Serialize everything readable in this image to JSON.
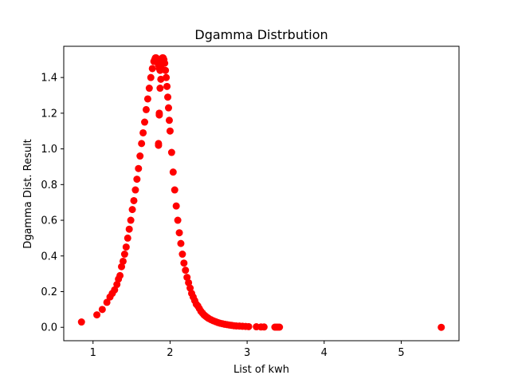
{
  "chart_data": {
    "type": "scatter",
    "title": "Dgamma Distrbution",
    "xlabel": "List of kwh",
    "ylabel": "Dgamma Dist. Result",
    "xlim": [
      0.62,
      5.75
    ],
    "ylim": [
      -0.075,
      1.575
    ],
    "xticks": [
      1,
      2,
      3,
      4,
      5
    ],
    "yticks": [
      0.0,
      0.2,
      0.4,
      0.6,
      0.8,
      1.0,
      1.2,
      1.4
    ],
    "ytick_labels": [
      "0.0",
      "0.2",
      "0.4",
      "0.6",
      "0.8",
      "1.0",
      "1.2",
      "1.4"
    ],
    "grid": false,
    "marker_color": "#ff0000",
    "series": [
      {
        "x": [
          0.85,
          1.05,
          1.12,
          1.18,
          1.22,
          1.25,
          1.28,
          1.31,
          1.33,
          1.35,
          1.37,
          1.39,
          1.41,
          1.43,
          1.45,
          1.47,
          1.49,
          1.51,
          1.53,
          1.55,
          1.57,
          1.59,
          1.61,
          1.63,
          1.65,
          1.67,
          1.69,
          1.71,
          1.73,
          1.75,
          1.77,
          1.79,
          1.8,
          1.81,
          1.82,
          1.83,
          1.84,
          1.85,
          1.86,
          1.87,
          1.88,
          1.89,
          1.9,
          1.91,
          1.92,
          1.93,
          1.94,
          1.95,
          1.96,
          1.97,
          1.98,
          1.99,
          2.0,
          2.02,
          2.04,
          2.06,
          2.08,
          2.1,
          2.12,
          2.14,
          2.16,
          2.18,
          2.2,
          2.22,
          2.24,
          2.26,
          2.28,
          2.3,
          2.32,
          2.34,
          2.36,
          2.38,
          2.4,
          2.42,
          2.44,
          2.46,
          2.48,
          2.5,
          2.53,
          2.56,
          2.59,
          2.62,
          2.65,
          2.68,
          2.71,
          2.74,
          2.77,
          2.8,
          2.83,
          2.86,
          2.9,
          2.94,
          2.98,
          3.02,
          3.12,
          3.18,
          3.22,
          3.36,
          3.38,
          3.4,
          3.42,
          1.85,
          1.85,
          1.86,
          1.86,
          1.87,
          1.88,
          5.52
        ],
        "y": [
          0.03,
          0.07,
          0.1,
          0.14,
          0.17,
          0.19,
          0.21,
          0.24,
          0.27,
          0.29,
          0.34,
          0.37,
          0.41,
          0.45,
          0.5,
          0.55,
          0.6,
          0.66,
          0.71,
          0.77,
          0.83,
          0.89,
          0.96,
          1.03,
          1.09,
          1.15,
          1.22,
          1.28,
          1.34,
          1.4,
          1.45,
          1.49,
          1.5,
          1.51,
          1.51,
          1.5,
          1.49,
          1.47,
          1.45,
          1.44,
          1.46,
          1.49,
          1.51,
          1.51,
          1.5,
          1.48,
          1.44,
          1.4,
          1.35,
          1.29,
          1.23,
          1.16,
          1.1,
          0.98,
          0.87,
          0.77,
          0.68,
          0.6,
          0.53,
          0.47,
          0.41,
          0.36,
          0.32,
          0.28,
          0.25,
          0.22,
          0.19,
          0.17,
          0.15,
          0.13,
          0.12,
          0.105,
          0.09,
          0.08,
          0.07,
          0.063,
          0.056,
          0.05,
          0.043,
          0.037,
          0.032,
          0.027,
          0.023,
          0.02,
          0.017,
          0.015,
          0.013,
          0.011,
          0.009,
          0.008,
          0.007,
          0.006,
          0.005,
          0.004,
          0.003,
          0.002,
          0.002,
          0.001,
          0.001,
          0.001,
          0.001,
          1.03,
          1.02,
          1.2,
          1.19,
          1.34,
          1.39,
          0.0
        ]
      }
    ]
  }
}
